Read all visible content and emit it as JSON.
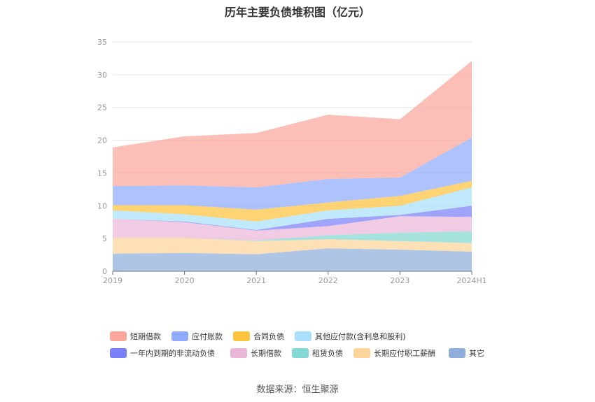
{
  "chart_data": {
    "type": "area",
    "stacked": true,
    "title": "历年主要负债堆积图（亿元）",
    "categories": [
      "2019",
      "2020",
      "2021",
      "2022",
      "2023",
      "2024H1"
    ],
    "ylim": [
      0,
      35
    ],
    "yticks": [
      0,
      5,
      10,
      15,
      20,
      25,
      30,
      35
    ],
    "grid": true,
    "legend_position": "bottom",
    "series": [
      {
        "name": "其它",
        "color": "#8faedb",
        "values": [
          2.7,
          2.8,
          2.6,
          3.5,
          3.3,
          3.0
        ]
      },
      {
        "name": "长期应付职工薪酬",
        "color": "#fdd49a",
        "values": [
          2.4,
          2.3,
          2.0,
          1.4,
          1.3,
          1.3
        ]
      },
      {
        "name": "租赁负债",
        "color": "#84d8d3",
        "values": [
          0,
          0,
          0.1,
          0.6,
          1.3,
          1.8
        ]
      },
      {
        "name": "长期借款",
        "color": "#eab7d8",
        "values": [
          2.9,
          2.4,
          1.5,
          1.4,
          2.5,
          2.2
        ]
      },
      {
        "name": "一年内到期的非流动负债",
        "color": "#7b7ff8",
        "values": [
          0,
          0.1,
          0.1,
          1.1,
          0.2,
          1.7
        ]
      },
      {
        "name": "其他应付款(含利息和股利)",
        "color": "#a8e0fb",
        "values": [
          1.3,
          1.1,
          1.3,
          1.3,
          1.4,
          2.8
        ]
      },
      {
        "name": "合同负债",
        "color": "#fdc23e",
        "values": [
          0.8,
          1.4,
          1.8,
          1.2,
          1.5,
          1.0
        ]
      },
      {
        "name": "应付账款",
        "color": "#8fabfc",
        "values": [
          2.9,
          3.0,
          3.4,
          3.6,
          2.8,
          6.6
        ]
      },
      {
        "name": "短期借款",
        "color": "#fba69b",
        "values": [
          5.9,
          7.5,
          8.3,
          9.8,
          8.9,
          11.7
        ]
      }
    ],
    "legend_order": [
      "短期借款",
      "应付账款",
      "合同负债",
      "其他应付款(含利息和股利)",
      "一年内到期的非流动负债",
      "长期借款",
      "租赁负债",
      "长期应付职工薪酬",
      "其它"
    ]
  },
  "source": "数据来源：恒生聚源"
}
